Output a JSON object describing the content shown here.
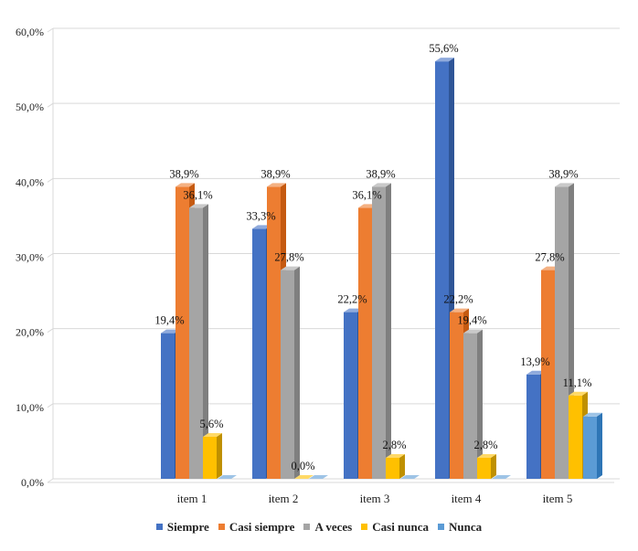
{
  "chart_data": {
    "type": "bar",
    "style": "3d-clustered-column",
    "categories": [
      "item 1",
      "item 2",
      "item 3",
      "item 4",
      "item 5"
    ],
    "series": [
      {
        "name": "Siempre",
        "color": "#4472C4",
        "side": "#2F5597",
        "top": "#8FAADC",
        "values": [
          19.4,
          33.3,
          22.2,
          55.6,
          13.9
        ],
        "labels": [
          "19,4%",
          "33,3%",
          "22,2%",
          "55,6%",
          "13,9%"
        ]
      },
      {
        "name": "Casi siempre",
        "color": "#ED7D31",
        "side": "#C55A11",
        "top": "#F4B183",
        "values": [
          38.9,
          38.9,
          36.1,
          22.2,
          27.8
        ],
        "labels": [
          "38,9%",
          "38,9%",
          "36,1%",
          "22,2%",
          "27,8%"
        ]
      },
      {
        "name": "A veces",
        "color": "#A5A5A5",
        "side": "#7F7F7F",
        "top": "#C9C9C9",
        "values": [
          36.1,
          27.8,
          38.9,
          19.4,
          38.9
        ],
        "labels": [
          "36,1%",
          "27,8%",
          "38,9%",
          "19,4%",
          "38,9%"
        ]
      },
      {
        "name": "Casi nunca",
        "color": "#FFC000",
        "side": "#BF9000",
        "top": "#FFD966",
        "values": [
          5.6,
          0.0,
          2.8,
          2.8,
          11.1
        ],
        "labels": [
          "5,6%",
          "0,0%",
          "2,8%",
          "2,8%",
          "11,1%"
        ]
      },
      {
        "name": "Nunca",
        "color": "#5B9BD5",
        "side": "#2E75B6",
        "top": "#9DC3E6",
        "values": [
          0,
          0,
          0,
          0,
          8.3
        ],
        "labels": [
          "",
          "",
          "",
          "",
          ""
        ]
      }
    ],
    "yticks": [
      "0,0%",
      "10,0%",
      "20,0%",
      "30,0%",
      "40,0%",
      "50,0%",
      "60,0%"
    ],
    "ylim": [
      0,
      60
    ],
    "grid": true,
    "legend_position": "bottom",
    "title": "",
    "xlabel": "",
    "ylabel": ""
  }
}
